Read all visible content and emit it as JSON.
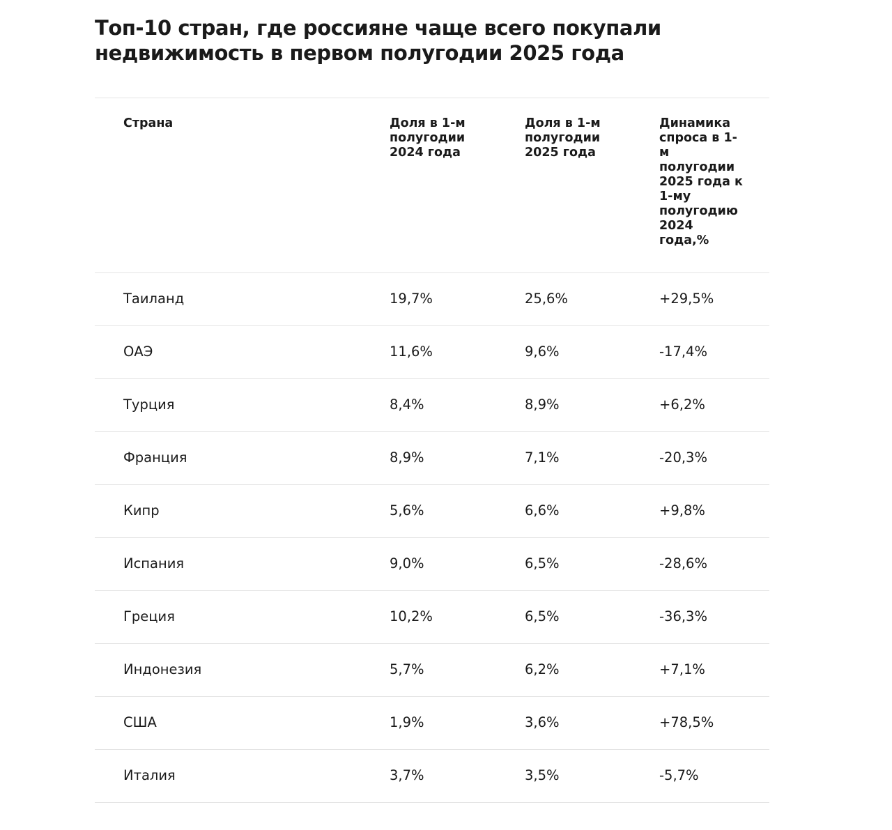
{
  "title": "Топ-10 стран, где россияне чаще всего покупали недвижимость в первом полугодии 2025 года",
  "table": {
    "headers": {
      "country": "Страна",
      "share_h1_2024": "Доля в 1-м полугодии 2024 года",
      "share_h1_2025": "Доля в 1-м полугодии 2025 года",
      "dynamics": "Динамика спроса в 1-м полугодии 2025 года к 1-му полугодию 2024 года,%"
    },
    "rows": [
      {
        "country": "Таиланд",
        "share_2024": "19,7%",
        "share_2025": "25,6%",
        "dynamics": "+29,5%"
      },
      {
        "country": "ОАЭ",
        "share_2024": "11,6%",
        "share_2025": "9,6%",
        "dynamics": "-17,4%"
      },
      {
        "country": "Турция",
        "share_2024": "8,4%",
        "share_2025": "8,9%",
        "dynamics": "+6,2%"
      },
      {
        "country": "Франция",
        "share_2024": "8,9%",
        "share_2025": "7,1%",
        "dynamics": "-20,3%"
      },
      {
        "country": "Кипр",
        "share_2024": "5,6%",
        "share_2025": "6,6%",
        "dynamics": "+9,8%"
      },
      {
        "country": "Испания",
        "share_2024": "9,0%",
        "share_2025": "6,5%",
        "dynamics": "-28,6%"
      },
      {
        "country": "Греция",
        "share_2024": "10,2%",
        "share_2025": "6,5%",
        "dynamics": "-36,3%"
      },
      {
        "country": "Индонезия",
        "share_2024": "5,7%",
        "share_2025": "6,2%",
        "dynamics": "+7,1%"
      },
      {
        "country": "США",
        "share_2024": "1,9%",
        "share_2025": "3,6%",
        "dynamics": "+78,5%"
      },
      {
        "country": "Италия",
        "share_2024": "3,7%",
        "share_2025": "3,5%",
        "dynamics": "-5,7%"
      }
    ]
  }
}
